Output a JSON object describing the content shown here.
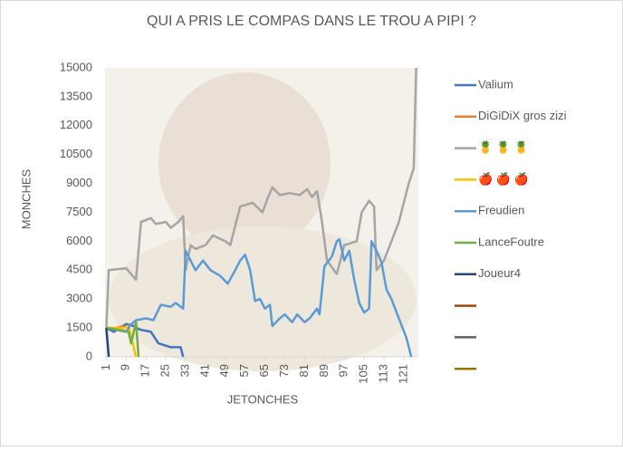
{
  "chart_data": {
    "type": "line",
    "title": "QUI A PRIS LE COMPAS DANS LE TROU A PIPI ?",
    "x_label": "JETONCHES",
    "y_label": "MONCHES",
    "xlim": [
      0.5,
      126.5
    ],
    "xticks": [
      1,
      9,
      17,
      25,
      33,
      41,
      49,
      57,
      65,
      73,
      81,
      89,
      97,
      105,
      113,
      121
    ],
    "ylim": [
      0,
      15000
    ],
    "yticks": [
      0,
      1500,
      3000,
      4500,
      6000,
      7500,
      9000,
      10500,
      12000,
      13500,
      15000
    ],
    "grid": false,
    "legend": "right",
    "series": [
      {
        "name": "Valium",
        "color": "#4472c4",
        "x": [
          1,
          4,
          9,
          12,
          13,
          15,
          19,
          22,
          27,
          31,
          32
        ],
        "values": [
          1500,
          1300,
          1700,
          1600,
          1500,
          1400,
          1300,
          700,
          500,
          500,
          0
        ]
      },
      {
        "name": "DiGiDiX gros zizi",
        "color": "#ed7d31",
        "x": [
          1,
          5,
          8
        ],
        "values": [
          1500,
          1500,
          1600
        ]
      },
      {
        "name": "🍍 🍍 🍍",
        "color": "#a5a5a5",
        "x": [
          1,
          2,
          9,
          13,
          15,
          19,
          21,
          25,
          27,
          30,
          32,
          33,
          35,
          37,
          41,
          44,
          49,
          51,
          55,
          60,
          64,
          66,
          68,
          71,
          75,
          79,
          82,
          84,
          86,
          88,
          90,
          94,
          97,
          102,
          104,
          107,
          109,
          110,
          113,
          116,
          119,
          121,
          123,
          125,
          126
        ],
        "values": [
          1500,
          4500,
          4600,
          4000,
          7000,
          7200,
          6900,
          7000,
          6700,
          7000,
          7300,
          4500,
          5800,
          5600,
          5800,
          6300,
          6000,
          5800,
          7800,
          8000,
          7500,
          8200,
          8800,
          8400,
          8500,
          8400,
          8700,
          8300,
          8600,
          7000,
          5000,
          4300,
          5800,
          6000,
          7500,
          8100,
          7800,
          4500,
          5000,
          6000,
          7000,
          8000,
          9000,
          9800,
          15000
        ]
      },
      {
        "name": "🍎 🍎 🍎",
        "color": "#ffc000",
        "x": [
          1,
          8,
          10,
          13
        ],
        "values": [
          1500,
          1500,
          1600,
          0
        ]
      },
      {
        "name": "Freudien",
        "color": "#5b9bd5",
        "x": [
          1,
          9,
          11,
          13,
          17,
          20,
          23,
          27,
          29,
          32,
          33,
          35,
          37,
          40,
          43,
          47,
          50,
          53,
          55,
          57,
          59,
          61,
          63,
          65,
          67,
          68,
          71,
          73,
          76,
          78,
          81,
          83,
          86,
          87,
          89,
          92,
          94,
          95,
          97,
          99,
          101,
          103,
          105,
          107,
          108,
          110,
          112,
          114,
          116,
          119,
          122,
          124
        ],
        "values": [
          1500,
          1300,
          1700,
          1900,
          2000,
          1900,
          2700,
          2600,
          2800,
          2500,
          5500,
          5000,
          4500,
          5000,
          4500,
          4200,
          3800,
          4500,
          5000,
          5300,
          4500,
          2900,
          3000,
          2500,
          2700,
          1600,
          2000,
          2200,
          1800,
          2200,
          1800,
          2000,
          2500,
          2200,
          4700,
          5200,
          6000,
          6100,
          5000,
          5500,
          4000,
          2800,
          2300,
          2500,
          6000,
          5500,
          4900,
          3500,
          3000,
          2000,
          1000,
          0
        ]
      },
      {
        "name": "LanceFoutre",
        "color": "#70ad47",
        "x": [
          1,
          6,
          10,
          11,
          13,
          14
        ],
        "values": [
          1500,
          1400,
          1300,
          700,
          1800,
          0
        ]
      },
      {
        "name": "Joueur4",
        "color": "#264478",
        "x": [
          1,
          2
        ],
        "values": [
          1500,
          0
        ]
      },
      {
        "name": null,
        "color": "#9e480e",
        "x": [],
        "values": []
      },
      {
        "name": null,
        "color": "#636363",
        "x": [],
        "values": []
      },
      {
        "name": null,
        "color": "#997300",
        "x": [],
        "values": []
      }
    ]
  }
}
